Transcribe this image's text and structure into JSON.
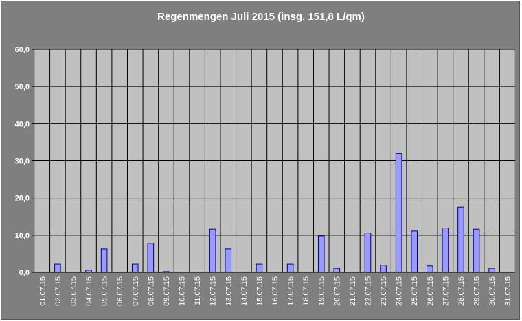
{
  "chart_data": {
    "type": "bar",
    "title": "Regenmengen Juli 2015 (insg. 151,8 L/qm)",
    "xlabel": "",
    "ylabel": "",
    "ylim": [
      0,
      60
    ],
    "y_ticks": [
      "0,0",
      "10,0",
      "20,0",
      "30,0",
      "40,0",
      "50,0",
      "60,0"
    ],
    "grid": true,
    "categories": [
      "01.07.15",
      "02.07.15",
      "03.07.15",
      "04.07.15",
      "05.07.15",
      "06.07.15",
      "07.07.15",
      "08.07.15",
      "09.07.15",
      "10.07.15",
      "11.07.15",
      "12.07.15",
      "13.07.15",
      "14.07.15",
      "15.07.15",
      "16.07.15",
      "17.07.15",
      "18.07.15",
      "19.07.15",
      "20.07.15",
      "21.07.15",
      "22.07.15",
      "23.07.15",
      "24.07.15",
      "25.07.15",
      "26.07.15",
      "27.07.15",
      "28.07.15",
      "29.07.15",
      "30.07.15",
      "31.07.15"
    ],
    "values": [
      0,
      2.2,
      0,
      0.6,
      6.3,
      0,
      2.2,
      7.8,
      0.2,
      0,
      0,
      11.6,
      6.3,
      0,
      2.2,
      0,
      2.2,
      0,
      9.8,
      1.1,
      0,
      10.6,
      1.9,
      32.0,
      11.1,
      1.7,
      11.9,
      17.5,
      11.6,
      1.1,
      0
    ],
    "colors": {
      "bar": "#9999ff",
      "bar_stroke": "#000080",
      "plot_bg": "#c0c0c0",
      "chart_bg": "#7f7f7f",
      "grid": "#000000"
    }
  }
}
